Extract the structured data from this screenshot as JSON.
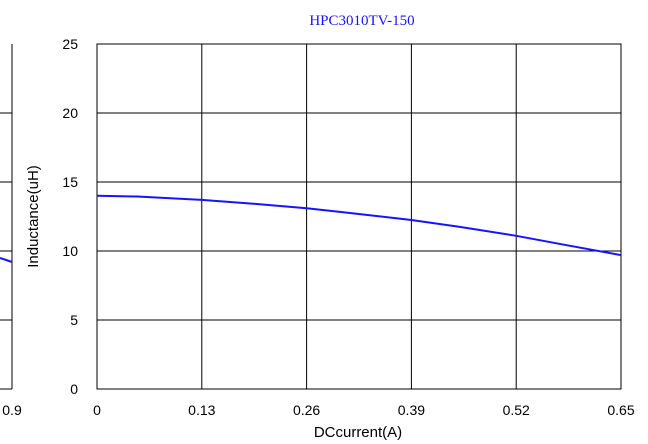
{
  "chart_data": [
    {
      "type": "line",
      "title": "",
      "xlabel": "",
      "ylabel": "",
      "x_ticks": [
        "0.9"
      ],
      "series": [
        {
          "name": "",
          "color": "#1414ff",
          "x": [
            0.86,
            0.9
          ],
          "y": [
            9.5,
            9.2
          ]
        }
      ]
    },
    {
      "type": "line",
      "title": "HPC3010TV-150",
      "xlabel": "DCcurrent(A)",
      "ylabel": "Inductance(uH)",
      "xlim": [
        0,
        0.65
      ],
      "ylim": [
        0,
        25
      ],
      "x_ticks": [
        "0",
        "0.13",
        "0.26",
        "0.39",
        "0.52",
        "0.65"
      ],
      "y_ticks": [
        "0",
        "5",
        "10",
        "15",
        "20",
        "25"
      ],
      "grid": true,
      "series": [
        {
          "name": "",
          "color": "#1414ff",
          "x": [
            0,
            0.05,
            0.1,
            0.13,
            0.2,
            0.26,
            0.3,
            0.39,
            0.45,
            0.52,
            0.58,
            0.65
          ],
          "y": [
            14.0,
            13.95,
            13.8,
            13.7,
            13.4,
            13.1,
            12.85,
            12.25,
            11.75,
            11.1,
            10.45,
            9.7
          ]
        }
      ]
    }
  ]
}
